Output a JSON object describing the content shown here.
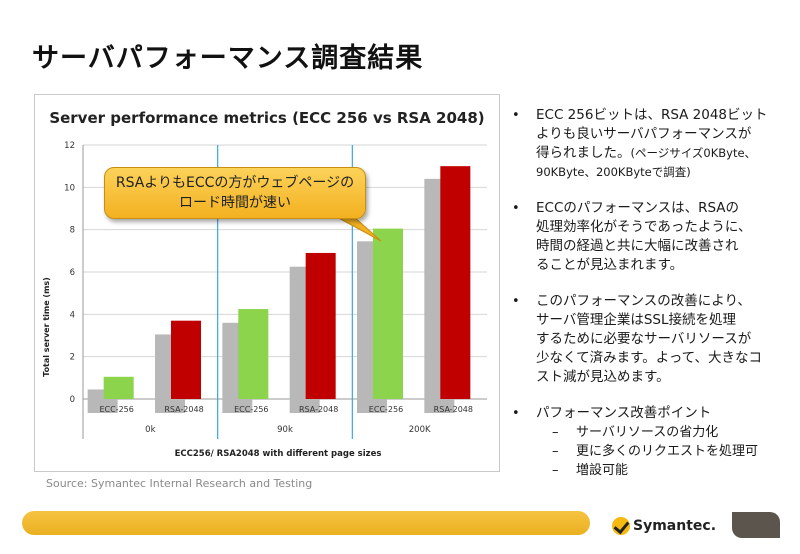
{
  "slide": {
    "title": "サーバパフォーマンス調査結果",
    "source": "Source:  Symantec Internal Research and Testing",
    "callout": [
      "RSAよりもECCの方がウェブページの",
      "ロード時間が速い"
    ],
    "logo_text": "Symantec.",
    "bullets": [
      {
        "lines": [
          "ECC 256ビットは、RSA 2048ビット",
          "よりも良いサーバパフォーマンスが",
          "得られました。"
        ],
        "note_lines": [
          "(ページサイズ0KByte、",
          "90KByte、200KByteで調査)"
        ]
      },
      {
        "lines": [
          "ECCのパフォーマンスは、RSAの",
          "処理効率化がそうであったように、",
          "時間の経過と共に大幅に改善され",
          "ることが見込まれます。"
        ]
      },
      {
        "lines": [
          "このパフォーマンスの改善により、",
          "サーバ管理企業はSSL接続を処理",
          "するために必要なサーバリソースが",
          "少なくて済みます。よって、大きなコ",
          "スト減が見込めます。"
        ]
      },
      {
        "lines": [
          "パフォーマンス改善ポイント"
        ],
        "sub_items": [
          "サーバリソースの省力化",
          "更に多くのリクエストを処理可",
          "増設可能"
        ]
      }
    ]
  },
  "chart_data": {
    "type": "bar",
    "title": "Server performance metrics (ECC 256 vs RSA 2048)",
    "xlabel": "ECC256/ RSA2048 with different page sizes",
    "ylabel": "Total server time (ms)",
    "ylim": [
      0,
      12
    ],
    "yticks": [
      0,
      2,
      4,
      6,
      8,
      10,
      12
    ],
    "groups": [
      "0k",
      "90k",
      "200K"
    ],
    "categories": [
      "ECC-256",
      "RSA-2048",
      "ECC-256",
      "RSA-2048",
      "ECC-256",
      "RSA-2048"
    ],
    "values": [
      1.05,
      3.7,
      4.25,
      6.9,
      8.05,
      11.0
    ],
    "shadow_values": [
      0.45,
      3.05,
      3.6,
      6.25,
      7.45,
      10.4
    ],
    "colors": {
      "ECC-256": "#8cd44b",
      "RSA-2048": "#c00000",
      "shadow": "#b8b8b8",
      "divider": "#3aa7e0"
    }
  }
}
